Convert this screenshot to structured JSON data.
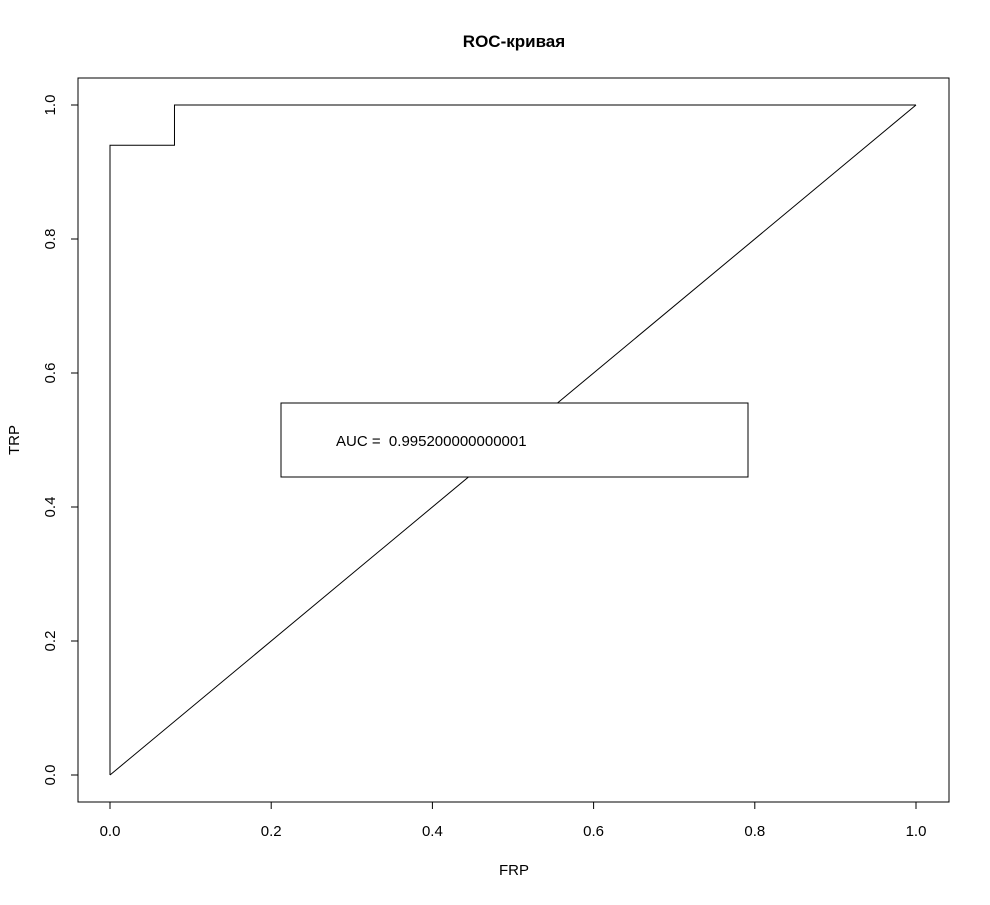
{
  "chart_data": {
    "type": "line",
    "title": "ROC-кривая",
    "xlabel": "FRP",
    "ylabel": "TRP",
    "xlim": [
      0,
      1
    ],
    "ylim": [
      0,
      1
    ],
    "x_ticks": [
      "0.0",
      "0.2",
      "0.4",
      "0.6",
      "0.8",
      "1.0"
    ],
    "y_ticks": [
      "0.0",
      "0.2",
      "0.4",
      "0.6",
      "0.8",
      "1.0"
    ],
    "grid": false,
    "series": [
      {
        "x": [
          0.0,
          0.0,
          0.08,
          0.08,
          1.0
        ],
        "y": [
          0.0,
          0.94,
          0.94,
          1.0,
          1.0
        ]
      },
      {
        "x": [
          0.0,
          1.0
        ],
        "y": [
          0.0,
          1.0
        ]
      }
    ],
    "legend": {
      "position": "center",
      "text": "AUC =  0.995200000000001"
    },
    "colors": {
      "line": "#000000",
      "background": "#ffffff"
    }
  }
}
